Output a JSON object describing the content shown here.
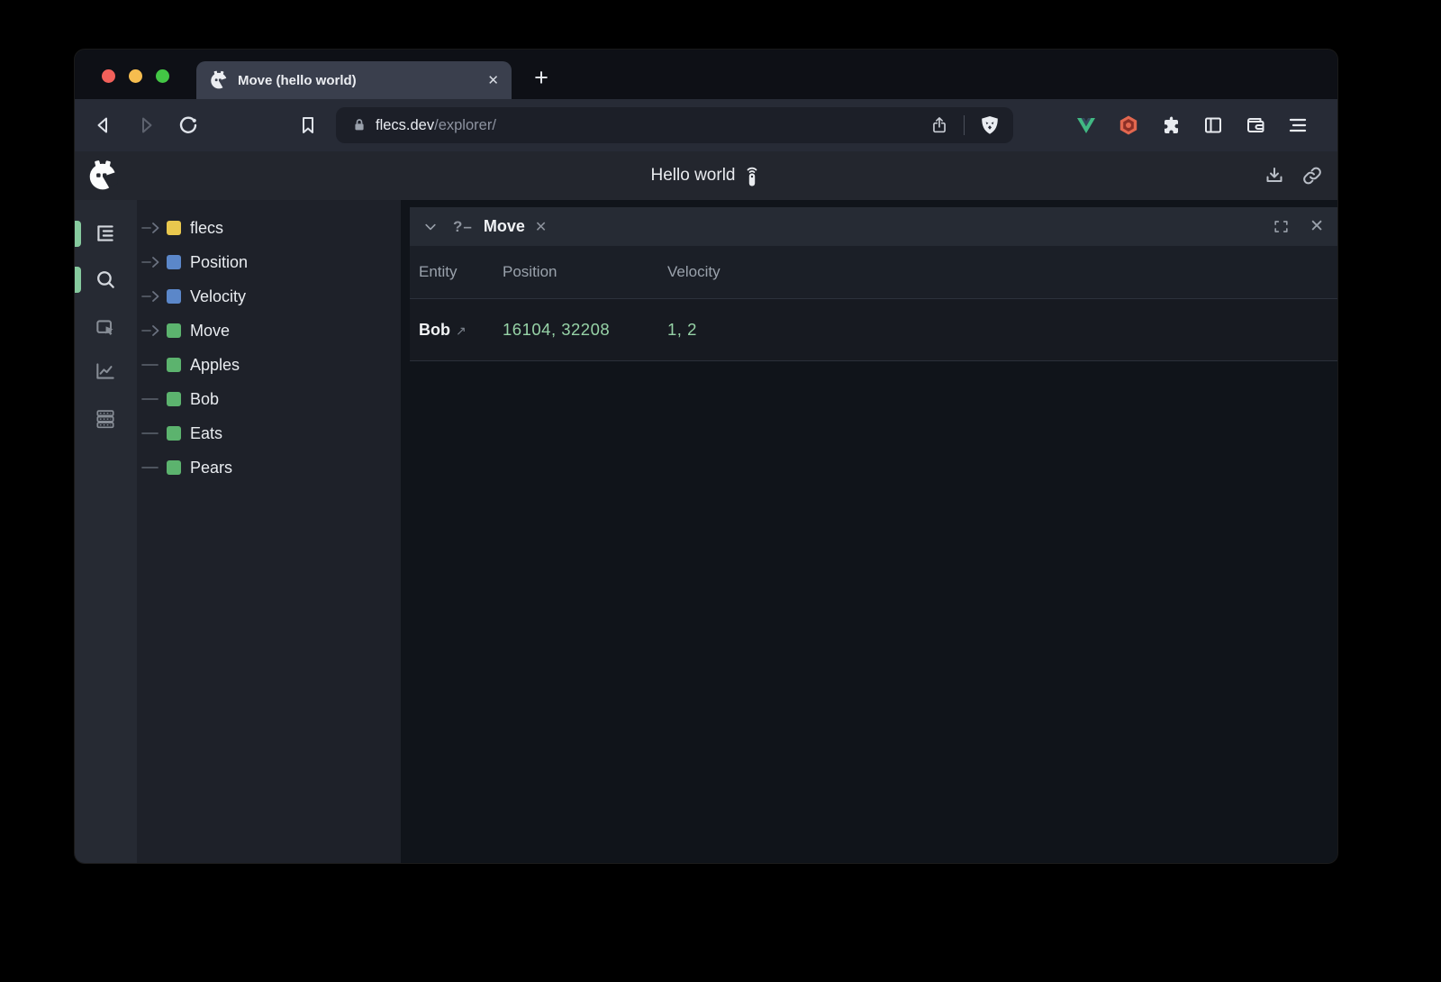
{
  "browser": {
    "tab_title": "Move (hello world)",
    "tab_close_glyph": "✕",
    "new_tab_glyph": "+",
    "url_domain": "flecs.dev",
    "url_path": "/explorer/"
  },
  "header": {
    "title": "Hello world"
  },
  "sidebar": {
    "tree_items": [
      {
        "label": "flecs",
        "color": "#e9c84e",
        "expandable": true
      },
      {
        "label": "Position",
        "color": "#5b87c9",
        "expandable": true
      },
      {
        "label": "Velocity",
        "color": "#5b87c9",
        "expandable": true
      },
      {
        "label": "Move",
        "color": "#5cb36e",
        "expandable": true
      },
      {
        "label": "Apples",
        "color": "#5cb36e",
        "expandable": false
      },
      {
        "label": "Bob",
        "color": "#5cb36e",
        "expandable": false
      },
      {
        "label": "Eats",
        "color": "#5cb36e",
        "expandable": false
      },
      {
        "label": "Pears",
        "color": "#5cb36e",
        "expandable": false
      }
    ],
    "active_indicator_color": "#86ca9e"
  },
  "query_panel": {
    "operator_label": "?–",
    "title": "Move",
    "close_glyph": "✕",
    "columns": [
      "Entity",
      "Position",
      "Velocity"
    ],
    "rows": [
      {
        "entity": "Bob",
        "link_glyph": "↗",
        "position": "16104, 32208",
        "velocity": "1, 2"
      }
    ],
    "value_color": "#97d3a7"
  }
}
